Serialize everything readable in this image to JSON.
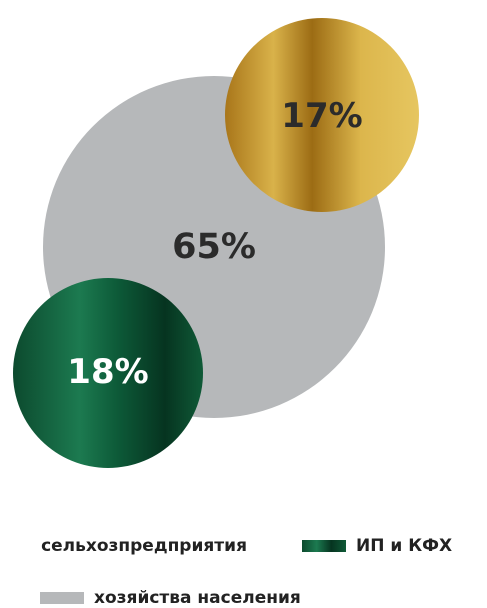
{
  "chart_data": {
    "type": "bubble",
    "unit": "%",
    "series": [
      {
        "name": "хозяйства населения",
        "value": 65,
        "label": "65%",
        "color": "#b6b8ba"
      },
      {
        "name": "сельхозпредприятия",
        "value": 17,
        "label": "17%",
        "color": "#c9a030"
      },
      {
        "name": "ИП и КФХ",
        "value": 18,
        "label": "18%",
        "color": "#0d5a38"
      }
    ],
    "legend": [
      {
        "label": "сельхозпредприятия",
        "color": "#c9a030"
      },
      {
        "label": "ИП и КФХ",
        "color": "#0d5a38"
      },
      {
        "label": "хозяйства населения",
        "color": "#b6b8ba"
      }
    ]
  }
}
